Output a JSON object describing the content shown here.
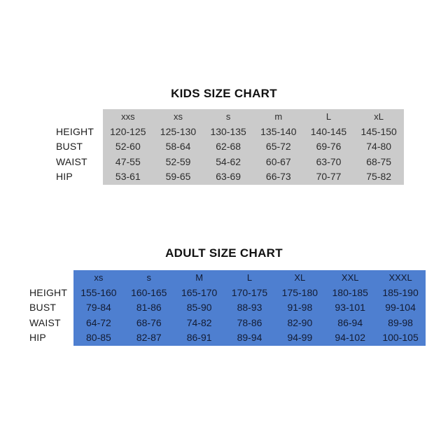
{
  "page": {
    "background": "#ffffff"
  },
  "chart_data": [
    {
      "type": "table",
      "title": "KIDS SIZE CHART",
      "table_bg": "#cbcbcb",
      "text_color": "#2d2d2d",
      "columns": [
        "xxs",
        "xs",
        "s",
        "m",
        "L",
        "xL"
      ],
      "row_labels": [
        "HEIGHT",
        "BUST",
        "WAIST",
        "HIP"
      ],
      "rows": [
        [
          "120-125",
          "125-130",
          "130-135",
          "135-140",
          "140-145",
          "145-150"
        ],
        [
          "52-60",
          "58-64",
          "62-68",
          "65-72",
          "69-76",
          "74-80"
        ],
        [
          "47-55",
          "52-59",
          "54-62",
          "60-67",
          "63-70",
          "68-75"
        ],
        [
          "53-61",
          "59-65",
          "63-69",
          "66-73",
          "70-77",
          "75-82"
        ]
      ]
    },
    {
      "type": "table",
      "title": "ADULT SIZE CHART",
      "table_bg": "#4e7fd0",
      "text_color": "#131c33",
      "columns": [
        "xs",
        "s",
        "M",
        "L",
        "XL",
        "XXL",
        "XXXL"
      ],
      "row_labels": [
        "HEIGHT",
        "BUST",
        "WAIST",
        "HIP"
      ],
      "rows": [
        [
          "155-160",
          "160-165",
          "165-170",
          "170-175",
          "175-180",
          "180-185",
          "185-190"
        ],
        [
          "79-84",
          "81-86",
          "85-90",
          "88-93",
          "91-98",
          "93-101",
          "99-104"
        ],
        [
          "64-72",
          "68-76",
          "74-82",
          "78-86",
          "82-90",
          "86-94",
          "89-98"
        ],
        [
          "80-85",
          "82-87",
          "86-91",
          "89-94",
          "94-99",
          "94-102",
          "100-105"
        ]
      ]
    }
  ]
}
